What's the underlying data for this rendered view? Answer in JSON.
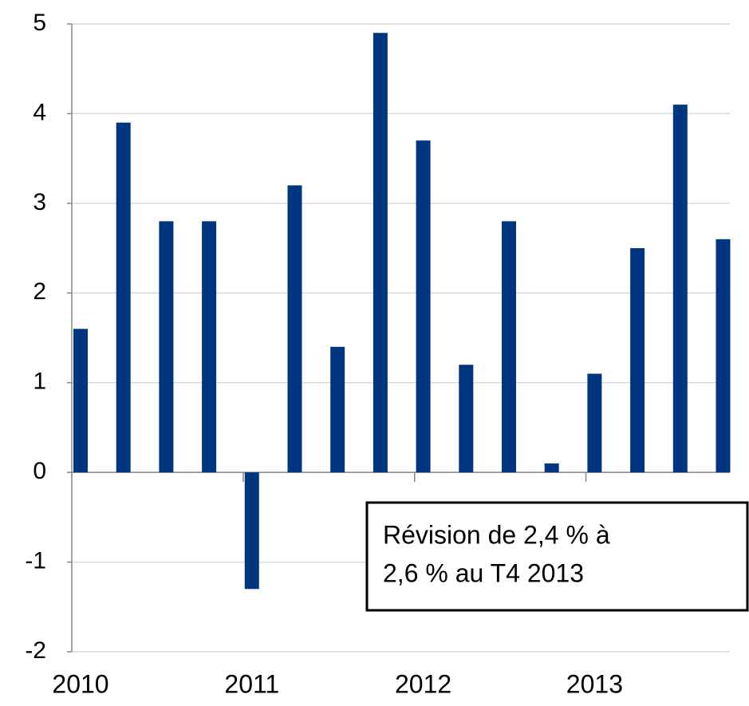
{
  "chart_data": {
    "type": "bar",
    "categories": [
      "2010",
      null,
      null,
      null,
      "2011",
      null,
      null,
      null,
      "2012",
      null,
      null,
      null,
      "2013",
      null,
      null,
      null
    ],
    "values": [
      1.6,
      3.9,
      2.8,
      2.8,
      -1.3,
      3.2,
      1.4,
      4.9,
      3.7,
      1.2,
      2.8,
      0.1,
      1.1,
      2.5,
      4.1,
      2.6
    ],
    "color": "#003580",
    "ylim": [
      -2,
      5
    ],
    "yticks": [
      -2,
      -1,
      0,
      1,
      2,
      3,
      4,
      5
    ],
    "grid": true,
    "annotation": [
      "Révision de 2,4 % à",
      "2,6 % au T4 2013"
    ]
  }
}
